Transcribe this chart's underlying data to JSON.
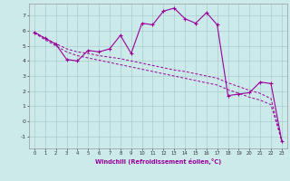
{
  "xlabel": "Windchill (Refroidissement éolien,°C)",
  "x_data": [
    0,
    1,
    2,
    3,
    4,
    5,
    6,
    7,
    8,
    9,
    10,
    11,
    12,
    13,
    14,
    15,
    16,
    17,
    18,
    19,
    20,
    21,
    22,
    23
  ],
  "main_line": [
    5.9,
    5.5,
    5.1,
    4.1,
    4.0,
    4.7,
    4.6,
    4.8,
    5.7,
    4.5,
    6.5,
    6.4,
    7.3,
    7.5,
    6.8,
    6.5,
    7.2,
    6.4,
    1.7,
    1.8,
    1.9,
    2.6,
    2.5,
    -1.3
  ],
  "trend_line1": [
    5.9,
    5.5,
    5.15,
    4.8,
    4.6,
    4.5,
    4.35,
    4.25,
    4.15,
    4.0,
    3.85,
    3.7,
    3.55,
    3.4,
    3.3,
    3.15,
    3.0,
    2.85,
    2.55,
    2.3,
    2.05,
    1.85,
    1.5,
    -1.3
  ],
  "trend_line2": [
    5.85,
    5.4,
    5.0,
    4.6,
    4.35,
    4.2,
    4.05,
    3.9,
    3.75,
    3.6,
    3.45,
    3.3,
    3.15,
    3.0,
    2.85,
    2.7,
    2.55,
    2.4,
    2.1,
    1.85,
    1.6,
    1.4,
    1.1,
    -1.3
  ],
  "bg_color": "#cceaea",
  "line_color": "#990099",
  "grid_color": "#aacccc",
  "ylim": [
    -1.8,
    7.8
  ],
  "xlim": [
    -0.5,
    23.5
  ],
  "yticks": [
    -1,
    0,
    1,
    2,
    3,
    4,
    5,
    6,
    7
  ],
  "xticks": [
    0,
    1,
    2,
    3,
    4,
    5,
    6,
    7,
    8,
    9,
    10,
    11,
    12,
    13,
    14,
    15,
    16,
    17,
    18,
    19,
    20,
    21,
    22,
    23
  ]
}
